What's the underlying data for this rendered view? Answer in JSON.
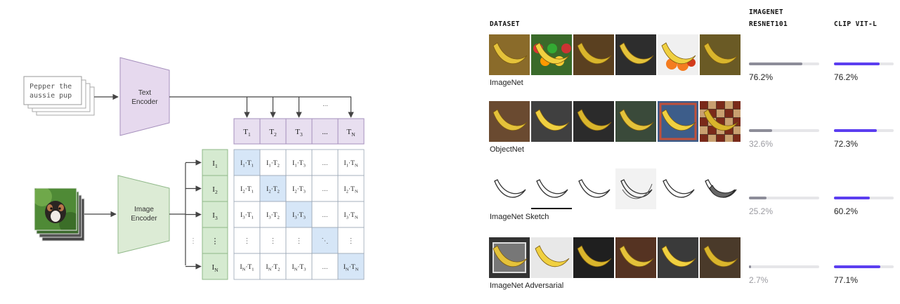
{
  "diagram": {
    "text_input": [
      "Pepper the",
      "aussie pup"
    ],
    "text_encoder": [
      "Text",
      "Encoder"
    ],
    "image_encoder": [
      "Image",
      "Encoder"
    ],
    "text_tokens": [
      {
        "base": "T",
        "sub": "1"
      },
      {
        "base": "T",
        "sub": "2"
      },
      {
        "base": "T",
        "sub": "3"
      },
      {
        "base": "...",
        "sub": ""
      },
      {
        "base": "T",
        "sub": "N"
      }
    ],
    "image_tokens": [
      {
        "base": "I",
        "sub": "1"
      },
      {
        "base": "I",
        "sub": "2"
      },
      {
        "base": "I",
        "sub": "3"
      },
      {
        "base": "⋮",
        "sub": ""
      },
      {
        "base": "I",
        "sub": "N"
      }
    ],
    "dots_h": "...",
    "dots_v": "⋮",
    "dots_d": "⋱",
    "colors": {
      "encoder_text": "#e6d9ee",
      "encoder_text_border": "#a58fbc",
      "encoder_image": "#dcebd5",
      "encoder_image_border": "#8fb888",
      "token_text": "#e8dff0",
      "token_image": "#d5ead0",
      "diag_cell": "#d6e6f7"
    }
  },
  "table": {
    "headers": {
      "dataset": "DATASET",
      "resnet": [
        "IMAGENET",
        "RESNET101"
      ],
      "clip": "CLIP VIT-L"
    },
    "colors": {
      "resnet_bar": "#8d8d99",
      "clip_bar": "#5b3ef0",
      "track": "#e6e6e9",
      "resnet_low_text": "#9a9aa0"
    },
    "rows": [
      {
        "name": "ImageNet",
        "resnet": 76.2,
        "resnet_label": "76.2%",
        "clip": 76.2,
        "clip_label": "76.2%"
      },
      {
        "name": "ObjectNet",
        "resnet": 32.6,
        "resnet_label": "32.6%",
        "clip": 72.3,
        "clip_label": "72.3%"
      },
      {
        "name": "ImageNet Sketch",
        "resnet": 25.2,
        "resnet_label": "25.2%",
        "clip": 60.2,
        "clip_label": "60.2%"
      },
      {
        "name": "ImageNet Adversarial",
        "resnet": 2.7,
        "resnet_label": "2.7%",
        "clip": 77.1,
        "clip_label": "77.1%"
      }
    ]
  },
  "thumbnail_icons": [
    [
      "banana-bunch-photo",
      "fruit-stand-photo",
      "banana-closeup-photo",
      "kitchen-bananas-photo",
      "banana-oranges-photo",
      "banana-pile-photo"
    ],
    [
      "banana-hanging-photo",
      "banana-hand-photo",
      "banana-held-photo",
      "banana-rug-photo",
      "banana-carpet-photo",
      "banana-mosaic-photo"
    ],
    [
      "banana-sketch",
      "banana-outline-sketch",
      "banana-line-sketch",
      "banana-pencil-sketch",
      "banana-peeled-sketch",
      "banana-bunch-sketch"
    ],
    [
      "banana-film-photo",
      "banana-plate-photo",
      "banana-dark-photo",
      "banana-bowl-photo",
      "banana-floor-photo",
      "banana-room-photo"
    ]
  ]
}
